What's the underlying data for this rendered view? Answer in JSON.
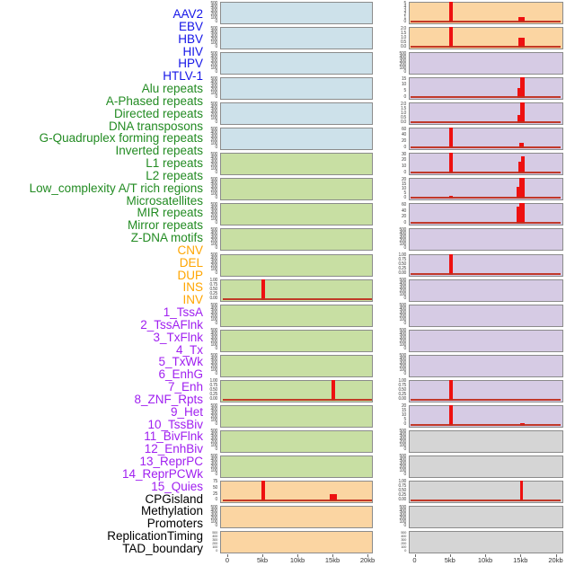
{
  "figure_title": "",
  "colors": {
    "label": {
      "virus": "#1414e8",
      "repeat": "#228b22",
      "sv": "#ffa500",
      "chromatin": "#a020f0",
      "annotation": "#000000"
    },
    "fill": {
      "virus": "#cde1ea",
      "repeat": "#c8dfa3",
      "sv": "#fbd5a2",
      "chromatin": "#d6cbe4",
      "annotation": "#d5d5d5"
    },
    "bar": "#ee1010",
    "baseline": "#c03020",
    "panel_border": "#8b8b8b",
    "tick_text": "#444444",
    "axis_text": "#333333"
  },
  "chart_data": {
    "type": "bar",
    "layout_hint": "44 horizontal genomic tracks wrapped into 2 columns of 22 panels; red bars = signal vs position 0-20kb; bar heights are fractions of each panel y-max",
    "x_axis": {
      "tick_labels": [
        "0",
        "5kb",
        "10kb",
        "15kb",
        "20kb"
      ],
      "tick_kb": [
        0,
        5,
        10,
        15,
        20
      ],
      "range_kb": [
        0,
        20
      ]
    },
    "tracks": [
      {
        "label": "AAV2",
        "category": "virus",
        "y_ticks": [
          "500",
          "400",
          "300",
          "200",
          "100",
          "0"
        ],
        "bars": [],
        "baseline": false,
        "dense": false
      },
      {
        "label": "EBV",
        "category": "virus",
        "y_ticks": [
          "500",
          "400",
          "300",
          "200",
          "100",
          "0"
        ],
        "bars": [],
        "baseline": false,
        "dense": false
      },
      {
        "label": "HBV",
        "category": "virus",
        "y_ticks": [
          "500",
          "400",
          "300",
          "200",
          "100",
          "0"
        ],
        "bars": [],
        "baseline": false,
        "dense": false
      },
      {
        "label": "HIV",
        "category": "virus",
        "y_ticks": [
          "500",
          "400",
          "300",
          "200",
          "100",
          "0"
        ],
        "bars": [],
        "baseline": false,
        "dense": false
      },
      {
        "label": "HPV",
        "category": "virus",
        "y_ticks": [
          "500",
          "400",
          "300",
          "200",
          "100",
          "0"
        ],
        "bars": [],
        "baseline": false,
        "dense": false
      },
      {
        "label": "HTLV-1",
        "category": "virus",
        "y_ticks": [
          "500",
          "400",
          "300",
          "200",
          "100",
          "0"
        ],
        "bars": [],
        "baseline": false,
        "dense": false
      },
      {
        "label": "Alu repeats",
        "category": "repeat",
        "y_ticks": [
          "500",
          "400",
          "300",
          "200",
          "100",
          "0"
        ],
        "bars": [],
        "baseline": false,
        "dense": false
      },
      {
        "label": "A-Phased repeats",
        "category": "repeat",
        "y_ticks": [
          "500",
          "400",
          "300",
          "200",
          "100",
          "0"
        ],
        "bars": [],
        "baseline": false,
        "dense": false
      },
      {
        "label": "Directed repeats",
        "category": "repeat",
        "y_ticks": [
          "500",
          "400",
          "300",
          "200",
          "100",
          "0"
        ],
        "bars": [],
        "baseline": false,
        "dense": false
      },
      {
        "label": "DNA transposons",
        "category": "repeat",
        "y_ticks": [
          "500",
          "400",
          "300",
          "200",
          "100",
          "0"
        ],
        "bars": [],
        "baseline": false,
        "dense": false
      },
      {
        "label": "G-Quadruplex forming repeats",
        "category": "repeat",
        "y_ticks": [
          "500",
          "400",
          "300",
          "200",
          "100",
          "0"
        ],
        "bars": [],
        "baseline": false,
        "dense": false
      },
      {
        "label": "Inverted repeats",
        "category": "repeat",
        "y_ticks": [
          "1.00",
          "0.75",
          "0.50",
          "0.25",
          "0.00"
        ],
        "bars": [
          {
            "x_kb": 5,
            "w": 4,
            "h": 1
          }
        ],
        "baseline": true,
        "dense": false
      },
      {
        "label": "L1 repeats",
        "category": "repeat",
        "y_ticks": [
          "500",
          "400",
          "300",
          "200",
          "100",
          "0"
        ],
        "bars": [],
        "baseline": false,
        "dense": false
      },
      {
        "label": "L2 repeats",
        "category": "repeat",
        "y_ticks": [
          "500",
          "400",
          "300",
          "200",
          "100",
          "0"
        ],
        "bars": [],
        "baseline": false,
        "dense": false
      },
      {
        "label": "Low_complexity A/T rich regions",
        "category": "repeat",
        "y_ticks": [
          "500",
          "400",
          "300",
          "200",
          "100",
          "0"
        ],
        "bars": [],
        "baseline": false,
        "dense": false
      },
      {
        "label": "Microsatellites",
        "category": "repeat",
        "y_ticks": [
          "1.00",
          "0.75",
          "0.50",
          "0.25",
          "0.00"
        ],
        "bars": [
          {
            "x_kb": 15,
            "w": 4,
            "h": 1
          }
        ],
        "baseline": true,
        "dense": false
      },
      {
        "label": "MIR repeats",
        "category": "repeat",
        "y_ticks": [
          "500",
          "400",
          "300",
          "200",
          "100",
          "0"
        ],
        "bars": [],
        "baseline": false,
        "dense": false
      },
      {
        "label": "Mirror repeats",
        "category": "repeat",
        "y_ticks": [
          "500",
          "400",
          "300",
          "200",
          "100",
          "0"
        ],
        "bars": [],
        "baseline": false,
        "dense": false
      },
      {
        "label": "Z-DNA motifs",
        "category": "repeat",
        "y_ticks": [
          "500",
          "400",
          "300",
          "200",
          "100",
          "0"
        ],
        "bars": [],
        "baseline": false,
        "dense": false
      },
      {
        "label": "CNV",
        "category": "sv",
        "y_ticks": [
          "75",
          "50",
          "25",
          "0"
        ],
        "bars": [
          {
            "x_kb": 5,
            "w": 4,
            "h": 1
          },
          {
            "x_kb": 15,
            "w": 8,
            "h": 0.33
          }
        ],
        "baseline": true,
        "dense": false
      },
      {
        "label": "DEL",
        "category": "sv",
        "y_ticks": [
          "500",
          "400",
          "300",
          "200",
          "100",
          "0"
        ],
        "bars": [],
        "baseline": false,
        "dense": false
      },
      {
        "label": "DUP",
        "category": "sv",
        "y_ticks": [
          "500",
          "400",
          "300",
          "200",
          "100",
          "0"
        ],
        "bars": [],
        "baseline": false,
        "dense": true
      },
      {
        "label": "INS",
        "category": "sv",
        "y_ticks": [
          "5",
          "4",
          "3",
          "2",
          "1",
          "0"
        ],
        "bars": [
          {
            "x_kb": 5,
            "w": 4,
            "h": 1
          },
          {
            "x_kb": 15,
            "w": 7,
            "h": 0.25
          }
        ],
        "baseline": true,
        "dense": false
      },
      {
        "label": "INV",
        "category": "sv",
        "y_ticks": [
          "2.0",
          "1.5",
          "1.0",
          "0.5",
          "0.0"
        ],
        "bars": [
          {
            "x_kb": 5,
            "w": 4,
            "h": 1
          },
          {
            "x_kb": 15,
            "w": 7,
            "h": 0.5
          }
        ],
        "baseline": true,
        "dense": false
      },
      {
        "label": "1_TssA",
        "category": "chromatin",
        "y_ticks": [
          "500",
          "400",
          "300",
          "200",
          "100",
          "0"
        ],
        "bars": [],
        "baseline": false,
        "dense": false
      },
      {
        "label": "2_TssAFlnk",
        "category": "chromatin",
        "y_ticks": [
          "15",
          "10",
          "5",
          "0"
        ],
        "bars": [
          {
            "x_kb": 14.7,
            "w": 3,
            "h": 0.5
          },
          {
            "x_kb": 15.1,
            "w": 5,
            "h": 1
          }
        ],
        "baseline": true,
        "dense": false
      },
      {
        "label": "3_TxFlnk",
        "category": "chromatin",
        "y_ticks": [
          "2.0",
          "1.5",
          "1.0",
          "0.5",
          "0.0"
        ],
        "bars": [
          {
            "x_kb": 14.7,
            "w": 3,
            "h": 0.4
          },
          {
            "x_kb": 15.1,
            "w": 5,
            "h": 1
          }
        ],
        "baseline": true,
        "dense": false
      },
      {
        "label": "4_Tx",
        "category": "chromatin",
        "y_ticks": [
          "60",
          "40",
          "20",
          "0"
        ],
        "bars": [
          {
            "x_kb": 5,
            "w": 4,
            "h": 1
          },
          {
            "x_kb": 15,
            "w": 5,
            "h": 0.28
          }
        ],
        "baseline": true,
        "dense": false
      },
      {
        "label": "5_TxWk",
        "category": "chromatin",
        "y_ticks": [
          "30",
          "20",
          "10",
          "0"
        ],
        "bars": [
          {
            "x_kb": 5,
            "w": 4,
            "h": 1
          },
          {
            "x_kb": 14.8,
            "w": 4,
            "h": 0.6
          },
          {
            "x_kb": 15.2,
            "w": 4,
            "h": 0.85
          }
        ],
        "baseline": true,
        "dense": false
      },
      {
        "label": "6_EnhG",
        "category": "chromatin",
        "y_ticks": [
          "20",
          "15",
          "10",
          "5",
          "0"
        ],
        "bars": [
          {
            "x_kb": 5,
            "w": 4,
            "h": 0.15
          },
          {
            "x_kb": 14.6,
            "w": 4,
            "h": 0.6
          },
          {
            "x_kb": 15.1,
            "w": 6,
            "h": 1
          }
        ],
        "baseline": true,
        "dense": false
      },
      {
        "label": "7_Enh",
        "category": "chromatin",
        "y_ticks": [
          "60",
          "40",
          "20",
          "0"
        ],
        "bars": [
          {
            "x_kb": 14.6,
            "w": 4,
            "h": 0.85
          },
          {
            "x_kb": 15.1,
            "w": 6,
            "h": 1
          }
        ],
        "baseline": true,
        "dense": false
      },
      {
        "label": "8_ZNF_Rpts",
        "category": "chromatin",
        "y_ticks": [
          "500",
          "400",
          "300",
          "200",
          "100",
          "0"
        ],
        "bars": [],
        "baseline": false,
        "dense": false
      },
      {
        "label": "9_Het",
        "category": "chromatin",
        "y_ticks": [
          "1.00",
          "0.75",
          "0.50",
          "0.25",
          "0.00"
        ],
        "bars": [
          {
            "x_kb": 5,
            "w": 4,
            "h": 1
          }
        ],
        "baseline": true,
        "dense": false
      },
      {
        "label": "10_TssBiv",
        "category": "chromatin",
        "y_ticks": [
          "500",
          "400",
          "300",
          "200",
          "100",
          "0"
        ],
        "bars": [],
        "baseline": false,
        "dense": false
      },
      {
        "label": "11_BivFlnk",
        "category": "chromatin",
        "y_ticks": [
          "500",
          "400",
          "300",
          "200",
          "100",
          "0"
        ],
        "bars": [],
        "baseline": false,
        "dense": false
      },
      {
        "label": "12_EnhBiv",
        "category": "chromatin",
        "y_ticks": [
          "500",
          "400",
          "300",
          "200",
          "100",
          "0"
        ],
        "bars": [],
        "baseline": false,
        "dense": false
      },
      {
        "label": "13_ReprPC",
        "category": "chromatin",
        "y_ticks": [
          "500",
          "400",
          "300",
          "200",
          "100",
          "0"
        ],
        "bars": [],
        "baseline": false,
        "dense": false
      },
      {
        "label": "14_ReprPCWk",
        "category": "chromatin",
        "y_ticks": [
          "1.00",
          "0.75",
          "0.50",
          "0.25",
          "0.00"
        ],
        "bars": [
          {
            "x_kb": 5,
            "w": 4,
            "h": 1
          }
        ],
        "baseline": true,
        "dense": false
      },
      {
        "label": "15_Quies",
        "category": "chromatin",
        "y_ticks": [
          "20",
          "15",
          "10",
          "5",
          "0"
        ],
        "bars": [
          {
            "x_kb": 5,
            "w": 4,
            "h": 1
          },
          {
            "x_kb": 15.1,
            "w": 5,
            "h": 0.13
          }
        ],
        "baseline": true,
        "dense": false
      },
      {
        "label": "CPGisland",
        "category": "annotation",
        "y_ticks": [
          "500",
          "400",
          "300",
          "200",
          "100",
          "0"
        ],
        "bars": [],
        "baseline": false,
        "dense": false
      },
      {
        "label": "Methylation",
        "category": "annotation",
        "y_ticks": [
          "500",
          "400",
          "300",
          "200",
          "100",
          "0"
        ],
        "bars": [],
        "baseline": false,
        "dense": false
      },
      {
        "label": "Promoters",
        "category": "annotation",
        "y_ticks": [
          "1.00",
          "0.75",
          "0.50",
          "0.25",
          "0.00"
        ],
        "bars": [
          {
            "x_kb": 15,
            "w": 3,
            "h": 1
          }
        ],
        "baseline": true,
        "dense": false
      },
      {
        "label": "ReplicationTiming",
        "category": "annotation",
        "y_ticks": [
          "500",
          "400",
          "300",
          "200",
          "100",
          "0"
        ],
        "bars": [],
        "baseline": false,
        "dense": false
      },
      {
        "label": "TAD_boundary",
        "category": "annotation",
        "y_ticks": [
          "500",
          "400",
          "300",
          "200",
          "100",
          "0"
        ],
        "bars": [],
        "baseline": false,
        "dense": true
      }
    ]
  }
}
